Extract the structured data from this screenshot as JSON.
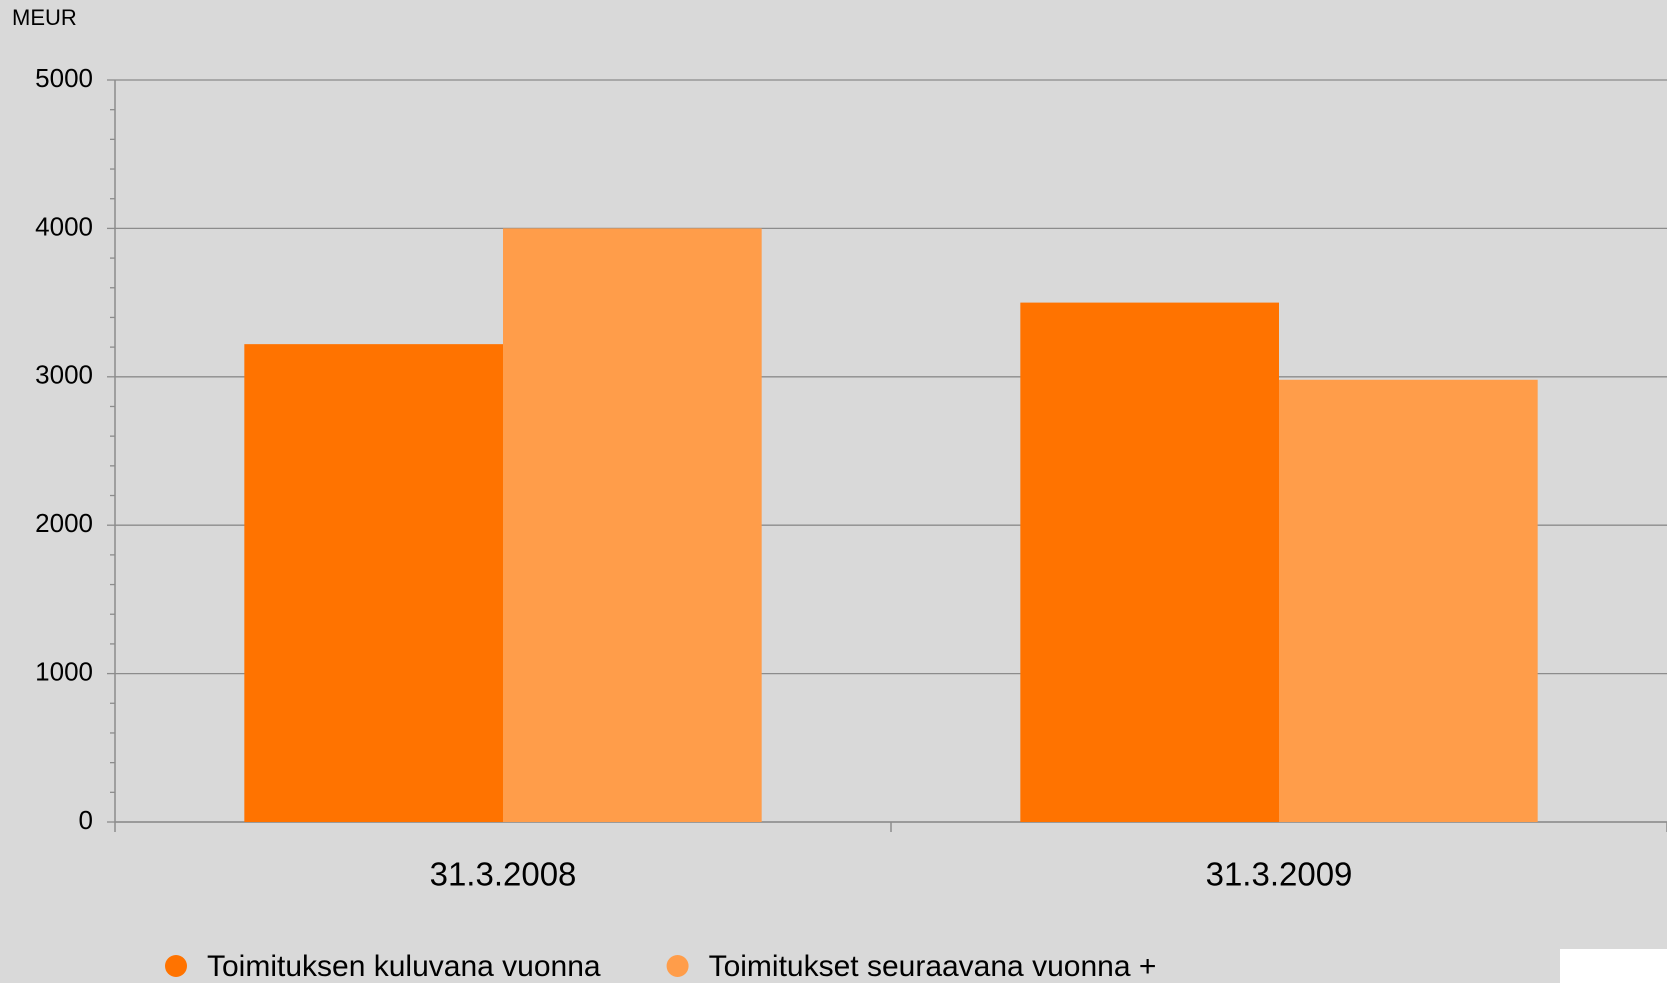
{
  "chart_data": {
    "type": "bar",
    "y_label": "MEUR",
    "categories": [
      "31.3.2008",
      "31.3.2009"
    ],
    "series": [
      {
        "name": "Toimituksen kuluvana vuonna",
        "color": "#ff7300",
        "values": [
          3220,
          3500
        ]
      },
      {
        "name": "Toimitukset seuraavana vuonna +",
        "color": "#ff9d4a",
        "values": [
          4000,
          2980
        ]
      }
    ],
    "ylim": [
      0,
      5000
    ],
    "yticks": [
      0,
      1000,
      2000,
      3000,
      4000,
      5000
    ],
    "grid": true
  }
}
